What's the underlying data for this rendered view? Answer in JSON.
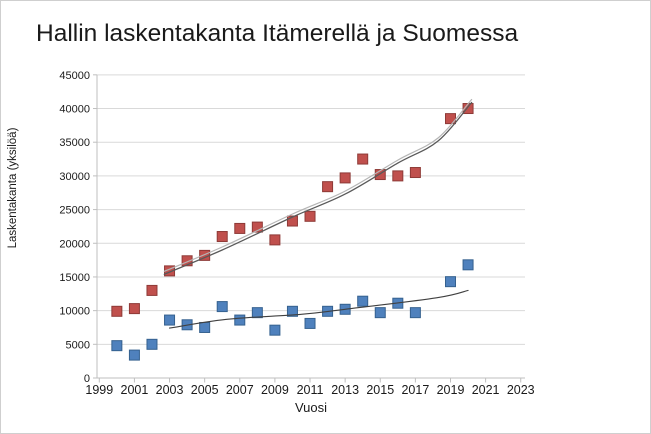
{
  "chart_data": {
    "type": "scatter",
    "title": "Hallin laskentakanta Itämerellä ja Suomessa",
    "xlabel": "Vuosi",
    "ylabel": "Laskentakanta (yksilöä)",
    "xlim": [
      1999,
      2023
    ],
    "ylim": [
      0,
      45000
    ],
    "x_ticks": [
      1999,
      2001,
      2003,
      2005,
      2007,
      2009,
      2011,
      2013,
      2015,
      2017,
      2019,
      2021,
      2023
    ],
    "y_ticks": [
      0,
      5000,
      10000,
      15000,
      20000,
      25000,
      30000,
      35000,
      40000,
      45000
    ],
    "grid": "horizontal",
    "legend": "none",
    "colors": {
      "red_marker": "#c0504d",
      "red_marker_border": "#8e3a37",
      "blue_marker": "#4f81bd",
      "blue_marker_border": "#35618f",
      "gridline": "#d9d9d9",
      "axis": "#bfbfbf",
      "trend_dark": "#595959",
      "trend_light": "#b5b5b5",
      "trend_blue": "#404040"
    },
    "series": [
      {
        "name": "red-squares",
        "marker": "square",
        "color": "#c0504d",
        "border": "#8e3a37",
        "points": [
          [
            2000,
            9900
          ],
          [
            2001,
            10300
          ],
          [
            2002,
            13000
          ],
          [
            2003,
            15900
          ],
          [
            2004,
            17400
          ],
          [
            2005,
            18200
          ],
          [
            2006,
            21000
          ],
          [
            2007,
            22200
          ],
          [
            2008,
            22400
          ],
          [
            2009,
            20500
          ],
          [
            2010,
            23300
          ],
          [
            2011,
            24000
          ],
          [
            2012,
            28400
          ],
          [
            2013,
            29700
          ],
          [
            2014,
            32500
          ],
          [
            2015,
            30200
          ],
          [
            2016,
            30000
          ],
          [
            2017,
            30500
          ],
          [
            2019,
            38500
          ],
          [
            2020,
            40000
          ]
        ]
      },
      {
        "name": "blue-squares",
        "marker": "square",
        "color": "#4f81bd",
        "border": "#35618f",
        "points": [
          [
            2000,
            4800
          ],
          [
            2001,
            3400
          ],
          [
            2002,
            5000
          ],
          [
            2003,
            8600
          ],
          [
            2004,
            7900
          ],
          [
            2005,
            7500
          ],
          [
            2006,
            10600
          ],
          [
            2007,
            8600
          ],
          [
            2008,
            9700
          ],
          [
            2009,
            7100
          ],
          [
            2010,
            9900
          ],
          [
            2011,
            8100
          ],
          [
            2012,
            9900
          ],
          [
            2013,
            10200
          ],
          [
            2014,
            11400
          ],
          [
            2015,
            9700
          ],
          [
            2016,
            11100
          ],
          [
            2017,
            9700
          ],
          [
            2019,
            14300
          ],
          [
            2020,
            16800
          ]
        ]
      }
    ],
    "trendlines": [
      {
        "name": "red-trend-shadow",
        "color": "#b5b5b5",
        "width": 1.2,
        "dy": -3,
        "points": [
          [
            2002.7,
            15400
          ],
          [
            2006.0,
            19000
          ],
          [
            2010.0,
            23900
          ],
          [
            2013.0,
            27300
          ],
          [
            2016.0,
            31900
          ],
          [
            2018.3,
            35200
          ],
          [
            2020.2,
            40900
          ]
        ]
      },
      {
        "name": "red-trend",
        "color": "#595959",
        "width": 1.3,
        "dy": 0,
        "points": [
          [
            2002.7,
            15400
          ],
          [
            2006.0,
            19000
          ],
          [
            2010.0,
            23900
          ],
          [
            2013.0,
            27300
          ],
          [
            2016.0,
            31900
          ],
          [
            2018.3,
            35200
          ],
          [
            2020.2,
            40900
          ]
        ]
      },
      {
        "name": "blue-trend",
        "color": "#404040",
        "width": 1.1,
        "dy": 0,
        "points": [
          [
            2003.0,
            7400
          ],
          [
            2006.2,
            8700
          ],
          [
            2010.5,
            9450
          ],
          [
            2013.0,
            10200
          ],
          [
            2018.2,
            11900
          ],
          [
            2020.0,
            13000
          ]
        ]
      }
    ]
  }
}
